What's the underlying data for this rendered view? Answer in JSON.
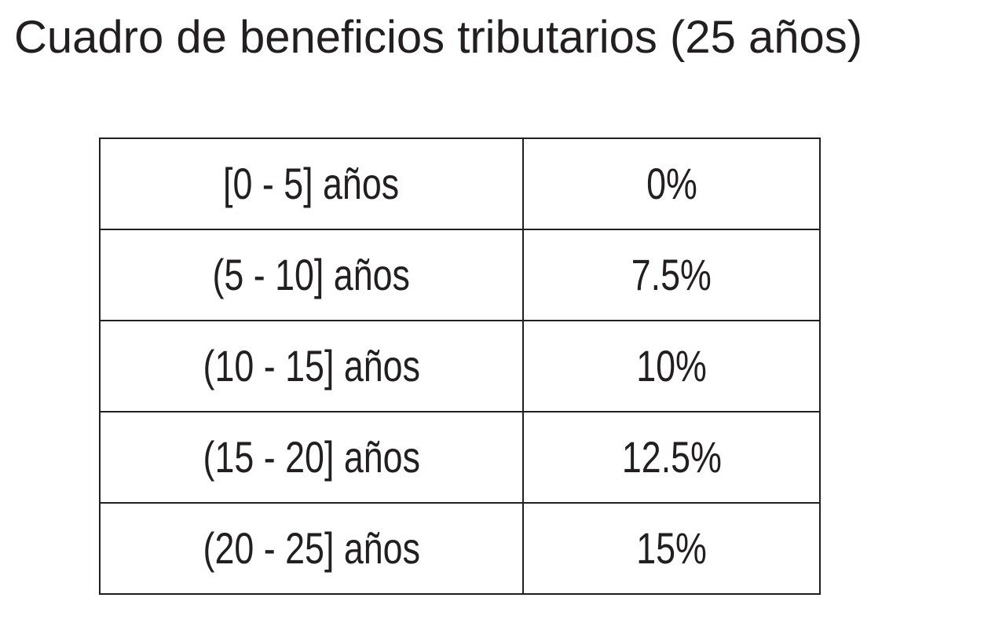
{
  "document": {
    "title": "Cuadro de beneficios tributarios (25 años)",
    "table": {
      "rows": [
        {
          "range": "[0 - 5] años",
          "rate": "0%"
        },
        {
          "range": "(5 - 10] años",
          "rate": "7.5%"
        },
        {
          "range": "(10 - 15] años",
          "rate": "10%"
        },
        {
          "range": "(15 - 20] años",
          "rate": "12.5%"
        },
        {
          "range": "(20 - 25] años",
          "rate": "15%"
        }
      ]
    }
  },
  "colors": {
    "text": "#231f20",
    "border": "#231f20",
    "background": "#ffffff"
  }
}
